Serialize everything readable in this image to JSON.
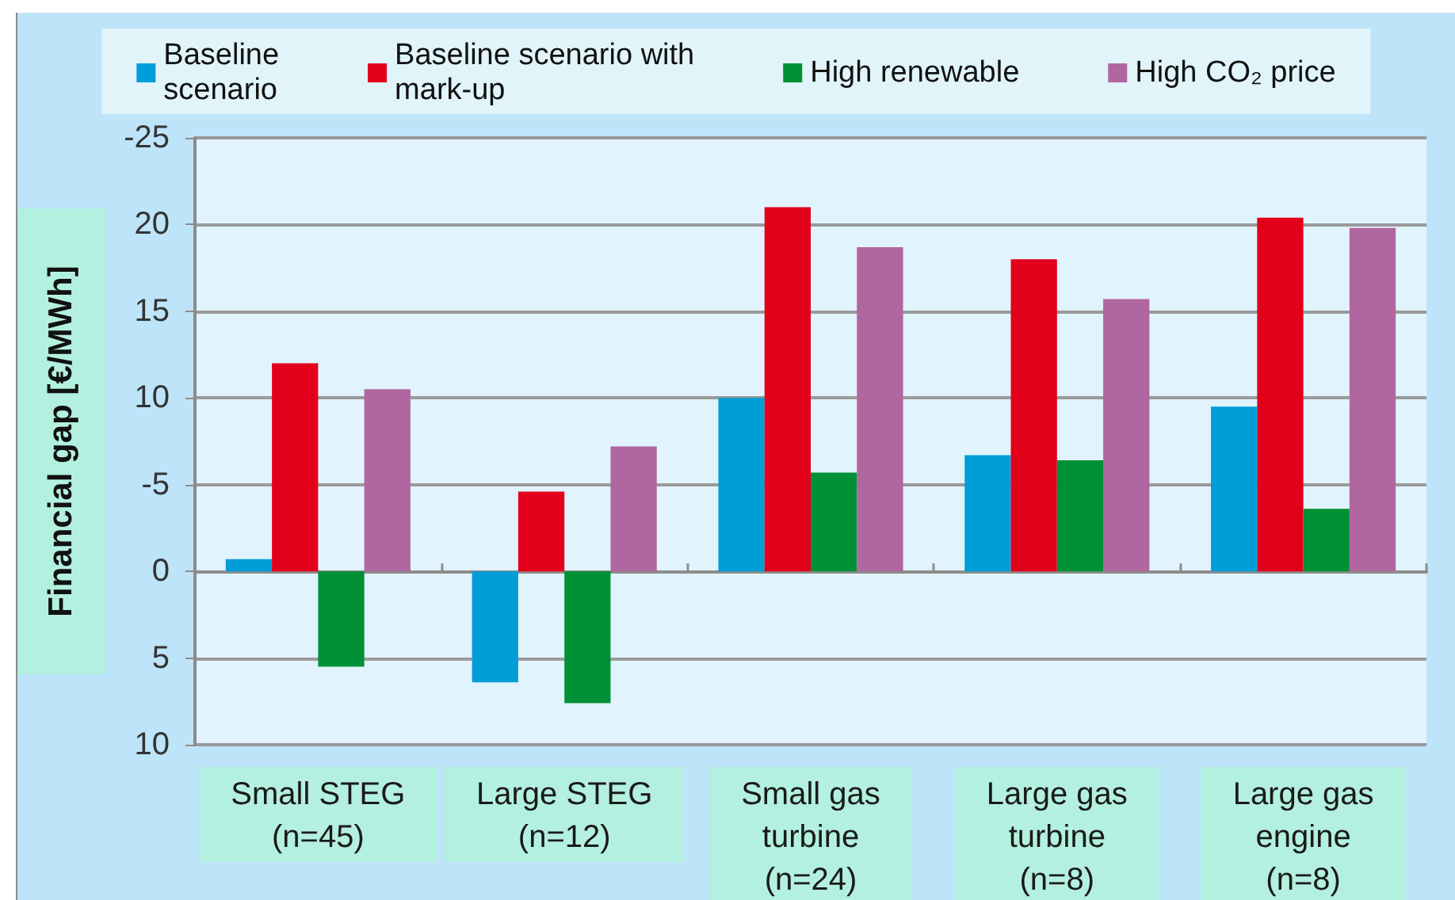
{
  "chart_data": {
    "type": "bar",
    "ylabel": "Financial gap [€/MWh]",
    "categories": [
      "Small STEG\n(n=45)",
      "Large STEG\n(n=12)",
      "Small gas\nturbine\n(n=24)",
      "Large gas\nturbine\n(n=8)",
      "Large gas\nengine\n(n=8)"
    ],
    "series": [
      {
        "name": "Baseline\nscenario",
        "color": "#009ed8",
        "values": [
          -0.7,
          6.4,
          -10,
          -6.7,
          -9.5
        ]
      },
      {
        "name": "Baseline scenario with\nmark-up",
        "color": "#e2001a",
        "values": [
          -12,
          -4.6,
          -21,
          -18,
          -20.4
        ]
      },
      {
        "name": "High renewable",
        "color": "#009035",
        "values": [
          5.5,
          7.6,
          -5.7,
          -6.4,
          -3.6
        ]
      },
      {
        "name": "High CO₂ price",
        "color": "#b0669f",
        "values": [
          -10.5,
          -7.2,
          -18.7,
          -15.7,
          -19.8
        ]
      }
    ],
    "ylim": [
      10,
      -25
    ],
    "yticks": [
      -25,
      {
        "value": -20,
        "label": "20"
      },
      {
        "value": -15,
        "label": "15"
      },
      {
        "value": -10,
        "label": "10"
      },
      -5,
      0,
      5,
      10
    ],
    "grid": "y",
    "legend": "top"
  }
}
